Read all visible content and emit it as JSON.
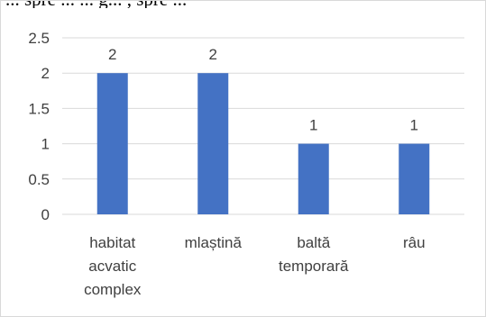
{
  "cropped_text": "...  spre ...  ... g...  , spre ...",
  "chart_data": {
    "type": "bar",
    "categories": [
      [
        "habitat",
        "acvatic",
        "complex"
      ],
      [
        "mlaștină"
      ],
      [
        "baltă",
        "temporară"
      ],
      [
        "râu"
      ]
    ],
    "values": [
      2,
      2,
      1,
      1
    ],
    "data_labels": [
      "2",
      "2",
      "1",
      "1"
    ],
    "y_ticks": [
      "0",
      "0.5",
      "1",
      "1.5",
      "2",
      "2.5"
    ],
    "ylim": [
      0,
      2.5
    ],
    "grid": true,
    "legend": "none",
    "title": "",
    "xlabel": "",
    "ylabel": "",
    "bar_color": "#4472c4",
    "grid_color": "#d9d9d9"
  }
}
